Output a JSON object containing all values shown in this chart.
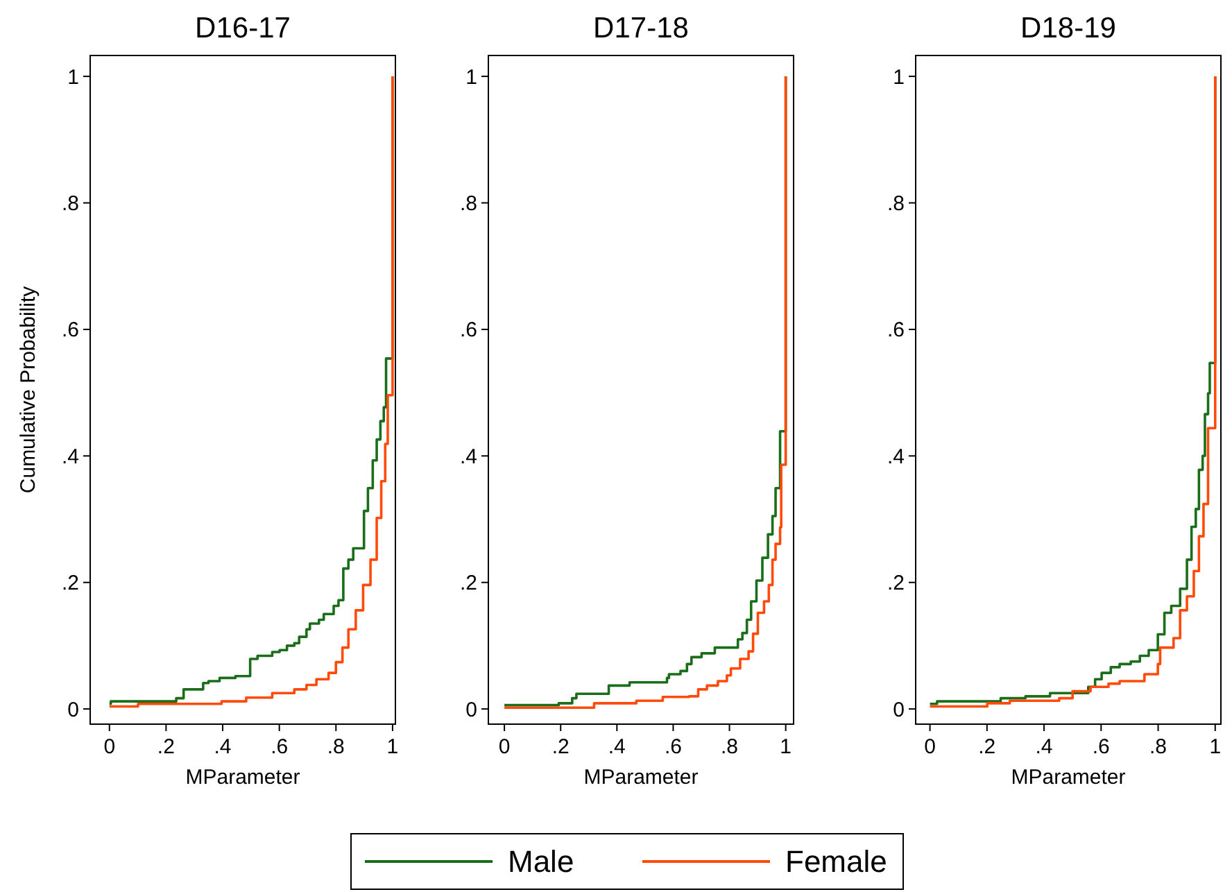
{
  "chart_data": [
    {
      "type": "step",
      "title": "D16-17",
      "xlabel": "MParameter",
      "ylabel": "Cumulative Probability",
      "xlim": [
        -0.068,
        1.01
      ],
      "ylim": [
        -0.024,
        1.033
      ],
      "xticks": [
        {
          "value": 0,
          "label": "0"
        },
        {
          "value": 0.2,
          "label": ".2"
        },
        {
          "value": 0.4,
          "label": ".4"
        },
        {
          "value": 0.6,
          "label": ".6"
        },
        {
          "value": 0.8,
          "label": ".8"
        },
        {
          "value": 1,
          "label": "1"
        }
      ],
      "yticks": [
        {
          "value": 0,
          "label": "0"
        },
        {
          "value": 0.2,
          "label": ".2"
        },
        {
          "value": 0.4,
          "label": ".4"
        },
        {
          "value": 0.6,
          "label": ".6"
        },
        {
          "value": 0.8,
          "label": ".8"
        },
        {
          "value": 1,
          "label": "1"
        }
      ],
      "grid": false,
      "legend": "bottom",
      "marker": "none",
      "line_style": "solid",
      "series": [
        {
          "name": "Male",
          "color": "#1a6e1a",
          "x": [
            0,
            0.005,
            0.236,
            0.262,
            0.331,
            0.35,
            0.389,
            0.445,
            0.497,
            0.523,
            0.575,
            0.601,
            0.627,
            0.653,
            0.67,
            0.696,
            0.708,
            0.74,
            0.757,
            0.792,
            0.809,
            0.826,
            0.844,
            0.861,
            0.899,
            0.913,
            0.93,
            0.944,
            0.957,
            0.969,
            0.977,
            1
          ],
          "values": [
            0.008,
            0.012,
            0.017,
            0.031,
            0.041,
            0.044,
            0.049,
            0.052,
            0.079,
            0.084,
            0.09,
            0.093,
            0.1,
            0.104,
            0.114,
            0.126,
            0.135,
            0.141,
            0.15,
            0.163,
            0.172,
            0.222,
            0.236,
            0.254,
            0.313,
            0.349,
            0.393,
            0.426,
            0.455,
            0.477,
            0.554,
            1
          ]
        },
        {
          "name": "Female",
          "color": "#ff4a0a",
          "x": [
            0,
            0.101,
            0.396,
            0.483,
            0.575,
            0.653,
            0.696,
            0.731,
            0.774,
            0.8,
            0.823,
            0.844,
            0.87,
            0.896,
            0.922,
            0.944,
            0.96,
            0.974,
            0.983,
            1
          ],
          "values": [
            0.004,
            0.008,
            0.012,
            0.018,
            0.025,
            0.031,
            0.038,
            0.047,
            0.057,
            0.074,
            0.097,
            0.126,
            0.156,
            0.196,
            0.236,
            0.302,
            0.36,
            0.419,
            0.496,
            1
          ]
        }
      ]
    },
    {
      "type": "step",
      "title": "D17-18",
      "xlabel": "MParameter",
      "xlim": [
        -0.057,
        1.028
      ],
      "ylim": [
        -0.024,
        1.033
      ],
      "xticks": [
        {
          "value": 0,
          "label": "0"
        },
        {
          "value": 0.2,
          "label": ".2"
        },
        {
          "value": 0.4,
          "label": ".4"
        },
        {
          "value": 0.6,
          "label": ".6"
        },
        {
          "value": 0.8,
          "label": ".8"
        },
        {
          "value": 1,
          "label": "1"
        }
      ],
      "yticks": [
        {
          "value": 0,
          "label": "0"
        },
        {
          "value": 0.2,
          "label": ".2"
        },
        {
          "value": 0.4,
          "label": ".4"
        },
        {
          "value": 0.6,
          "label": ".6"
        },
        {
          "value": 0.8,
          "label": ".8"
        },
        {
          "value": 1,
          "label": "1"
        }
      ],
      "grid": false,
      "marker": "none",
      "line_style": "solid",
      "series": [
        {
          "color": "#1a6e1a",
          "x": [
            0,
            0.193,
            0.241,
            0.256,
            0.371,
            0.445,
            0.578,
            0.585,
            0.626,
            0.649,
            0.665,
            0.701,
            0.748,
            0.83,
            0.846,
            0.862,
            0.877,
            0.896,
            0.917,
            0.937,
            0.953,
            0.964,
            0.98,
            1
          ],
          "values": [
            0.006,
            0.009,
            0.017,
            0.024,
            0.037,
            0.042,
            0.049,
            0.055,
            0.06,
            0.071,
            0.082,
            0.088,
            0.097,
            0.11,
            0.12,
            0.141,
            0.17,
            0.203,
            0.239,
            0.276,
            0.305,
            0.349,
            0.439,
            1
          ]
        },
        {
          "color": "#ff4a0a",
          "x": [
            0,
            0.319,
            0.469,
            0.563,
            0.657,
            0.689,
            0.72,
            0.759,
            0.791,
            0.805,
            0.838,
            0.868,
            0.884,
            0.901,
            0.923,
            0.94,
            0.953,
            0.964,
            0.98,
            0.984,
            1
          ],
          "values": [
            0.002,
            0.009,
            0.013,
            0.019,
            0.02,
            0.031,
            0.037,
            0.044,
            0.053,
            0.064,
            0.079,
            0.091,
            0.119,
            0.152,
            0.17,
            0.196,
            0.236,
            0.261,
            0.287,
            0.386,
            1
          ]
        }
      ]
    },
    {
      "type": "step",
      "title": "D18-19",
      "xlabel": "MParameter",
      "xlim": [
        -0.05,
        1.02
      ],
      "ylim": [
        -0.024,
        1.033
      ],
      "xticks": [
        {
          "value": 0,
          "label": "0"
        },
        {
          "value": 0.2,
          "label": ".2"
        },
        {
          "value": 0.4,
          "label": ".4"
        },
        {
          "value": 0.6,
          "label": ".6"
        },
        {
          "value": 0.8,
          "label": ".8"
        },
        {
          "value": 1,
          "label": "1"
        }
      ],
      "yticks": [
        {
          "value": 0,
          "label": "0"
        },
        {
          "value": 0.2,
          "label": ".2"
        },
        {
          "value": 0.4,
          "label": ".4"
        },
        {
          "value": 0.6,
          "label": ".6"
        },
        {
          "value": 0.8,
          "label": ".8"
        },
        {
          "value": 1,
          "label": "1"
        }
      ],
      "grid": false,
      "marker": "none",
      "line_style": "solid",
      "series": [
        {
          "color": "#1a6e1a",
          "x": [
            0,
            0.025,
            0.248,
            0.335,
            0.421,
            0.555,
            0.579,
            0.602,
            0.634,
            0.665,
            0.704,
            0.736,
            0.767,
            0.799,
            0.822,
            0.846,
            0.877,
            0.901,
            0.917,
            0.932,
            0.943,
            0.956,
            0.964,
            0.975,
            0.981,
            1
          ],
          "values": [
            0.008,
            0.012,
            0.017,
            0.02,
            0.025,
            0.035,
            0.047,
            0.057,
            0.066,
            0.071,
            0.075,
            0.084,
            0.093,
            0.118,
            0.152,
            0.163,
            0.19,
            0.236,
            0.288,
            0.316,
            0.378,
            0.4,
            0.466,
            0.499,
            0.547,
            1
          ]
        },
        {
          "color": "#ff4a0a",
          "x": [
            0,
            0.201,
            0.28,
            0.453,
            0.5,
            0.563,
            0.626,
            0.665,
            0.752,
            0.799,
            0.807,
            0.854,
            0.877,
            0.901,
            0.925,
            0.943,
            0.959,
            0.975,
            1
          ],
          "values": [
            0.004,
            0.009,
            0.013,
            0.017,
            0.028,
            0.035,
            0.04,
            0.044,
            0.055,
            0.071,
            0.097,
            0.112,
            0.156,
            0.178,
            0.218,
            0.273,
            0.324,
            0.444,
            1
          ]
        }
      ]
    }
  ]
}
